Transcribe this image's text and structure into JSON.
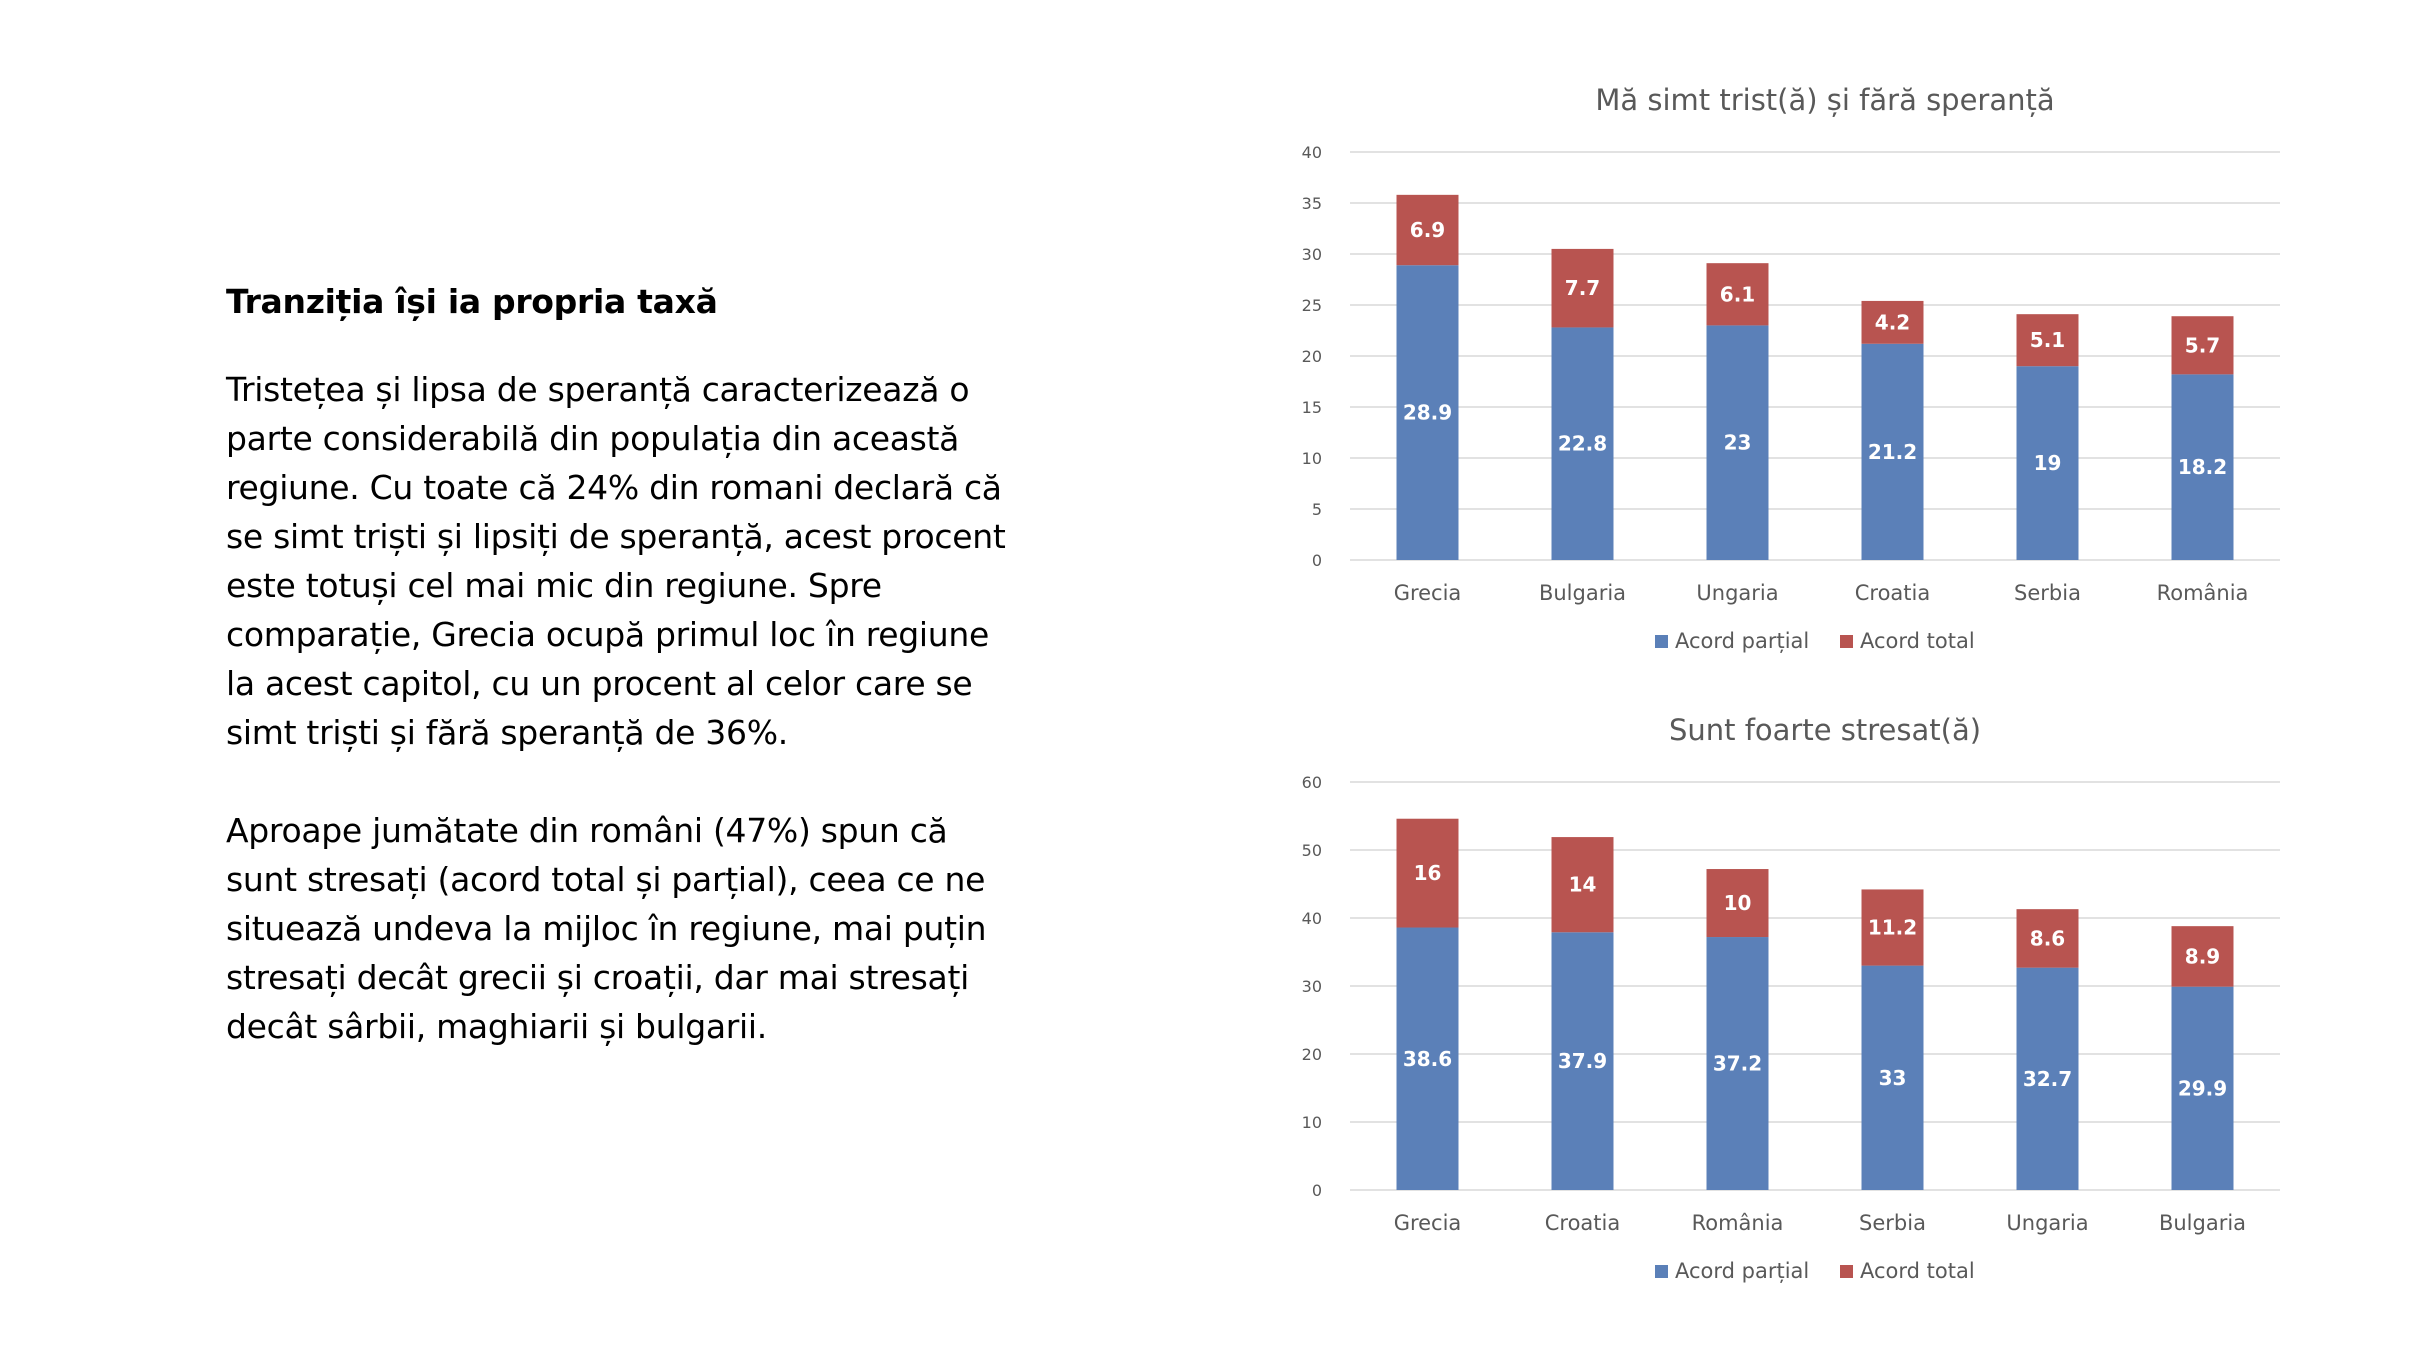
{
  "text": {
    "heading": "Tranziția își ia propria taxă",
    "paragraph1_lines": [
      "Tristețea și lipsa de speranță  caracterizează o",
      "parte considerabilă din populația din această",
      "regiune. Cu toate că 24% din romani declară că",
      "se simt triști și lipsiți de speranță, acest procent",
      "este totuși cel mai mic din regiune. Spre",
      "comparație, Grecia ocupă primul loc în regiune",
      "la acest capitol, cu un procent al celor care se",
      "simt triști și fără speranță de 36%."
    ],
    "paragraph2_lines": [
      "Aproape jumătate din români (47%) spun că",
      "sunt  stresați (acord total și parțial), ceea ce ne",
      "situează undeva la mijloc în regiune, mai puțin",
      "stresați decât grecii și croații, dar mai stresați",
      "decât sârbii, maghiarii și bulgarii."
    ]
  },
  "colors": {
    "partial": "#5b80b8",
    "total": "#b85450",
    "grid": "#d9d9d9",
    "axis_text": "#595959"
  },
  "chart_data": [
    {
      "type": "bar",
      "stacked": true,
      "title": "Mă simt trist(ă) și fără speranță",
      "categories": [
        "Grecia",
        "Bulgaria",
        "Ungaria",
        "Croatia",
        "Serbia",
        "România"
      ],
      "series": [
        {
          "name": "Acord parțial",
          "values": [
            28.9,
            22.8,
            23,
            21.2,
            19,
            18.2
          ]
        },
        {
          "name": "Acord total",
          "values": [
            6.9,
            7.7,
            6.1,
            4.2,
            5.1,
            5.7
          ]
        }
      ],
      "ylim": [
        0,
        40
      ],
      "yticks": [
        0,
        5,
        10,
        15,
        20,
        25,
        30,
        35,
        40
      ],
      "grid": true,
      "legend": "bottom"
    },
    {
      "type": "bar",
      "stacked": true,
      "title": "Sunt foarte stresat(ă)",
      "categories": [
        "Grecia",
        "Croatia",
        "România",
        "Serbia",
        "Ungaria",
        "Bulgaria"
      ],
      "series": [
        {
          "name": "Acord parțial",
          "values": [
            38.6,
            37.9,
            37.2,
            33,
            32.7,
            29.9
          ]
        },
        {
          "name": "Acord total",
          "values": [
            16,
            14,
            10,
            11.2,
            8.6,
            8.9
          ]
        }
      ],
      "ylim": [
        0,
        60
      ],
      "yticks": [
        0,
        10,
        20,
        30,
        40,
        50,
        60
      ],
      "grid": true,
      "legend": "bottom"
    }
  ]
}
